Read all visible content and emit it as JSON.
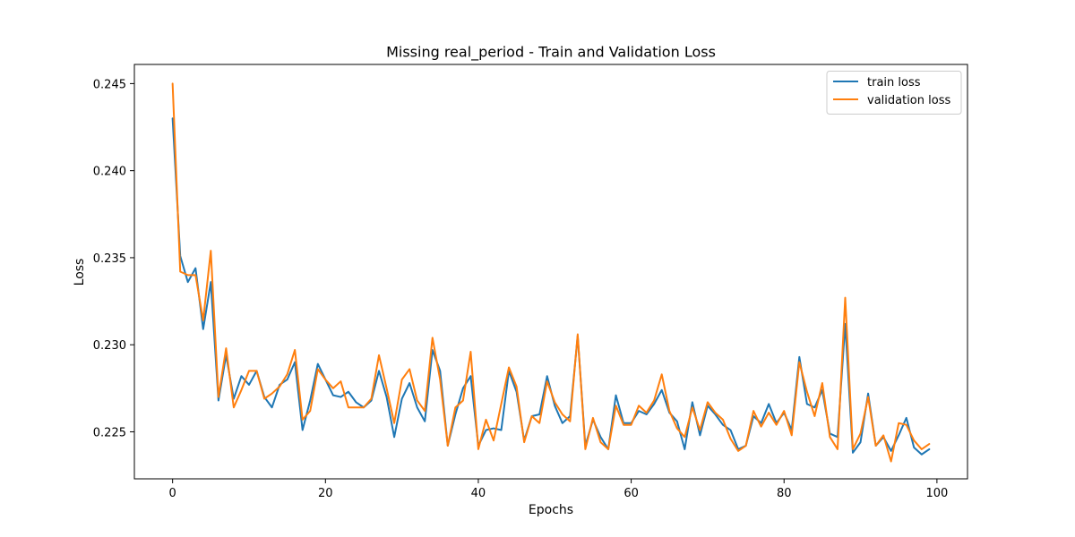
{
  "chart_data": {
    "type": "line",
    "title": "Missing real_period - Train and Validation Loss",
    "xlabel": "Epochs",
    "ylabel": "Loss",
    "xlim": [
      -5,
      104
    ],
    "ylim": [
      0.2223,
      0.2461
    ],
    "xticks": [
      0,
      20,
      40,
      60,
      80,
      100
    ],
    "yticks": [
      0.225,
      0.23,
      0.235,
      0.24,
      0.245
    ],
    "xtick_labels": [
      "0",
      "20",
      "40",
      "60",
      "80",
      "100"
    ],
    "ytick_labels": [
      "0.225",
      "0.230",
      "0.235",
      "0.240",
      "0.245"
    ],
    "legend_position": "top-right",
    "grid": false,
    "series": [
      {
        "name": "train loss",
        "color": "#1f77b4",
        "values": [
          0.243,
          0.2351,
          0.2336,
          0.2344,
          0.2309,
          0.2336,
          0.2268,
          0.2294,
          0.2269,
          0.2282,
          0.2277,
          0.2285,
          0.227,
          0.2264,
          0.2277,
          0.228,
          0.229,
          0.2251,
          0.2268,
          0.2289,
          0.228,
          0.2271,
          0.227,
          0.2273,
          0.2267,
          0.2264,
          0.2268,
          0.2285,
          0.227,
          0.2247,
          0.2269,
          0.2278,
          0.2264,
          0.2256,
          0.2297,
          0.2285,
          0.2242,
          0.226,
          0.2275,
          0.2282,
          0.2242,
          0.2251,
          0.2252,
          0.2251,
          0.2285,
          0.2273,
          0.2245,
          0.2259,
          0.226,
          0.2282,
          0.2265,
          0.2255,
          0.2259,
          0.2305,
          0.2242,
          0.2257,
          0.2247,
          0.224,
          0.2271,
          0.2255,
          0.2255,
          0.2262,
          0.226,
          0.2266,
          0.2274,
          0.2261,
          0.2256,
          0.224,
          0.2267,
          0.2248,
          0.2265,
          0.226,
          0.2254,
          0.2251,
          0.224,
          0.2242,
          0.2259,
          0.2255,
          0.2266,
          0.2255,
          0.2261,
          0.2251,
          0.2293,
          0.2266,
          0.2264,
          0.2274,
          0.2249,
          0.2247,
          0.2312,
          0.2238,
          0.2244,
          0.2272,
          0.2242,
          0.2247,
          0.2239,
          0.2248,
          0.2258,
          0.2241,
          0.2237,
          0.224
        ]
      },
      {
        "name": "validation loss",
        "color": "#ff7f0e",
        "values": [
          0.245,
          0.2342,
          0.234,
          0.234,
          0.2314,
          0.2354,
          0.227,
          0.2298,
          0.2264,
          0.2274,
          0.2285,
          0.2285,
          0.2269,
          0.2272,
          0.2276,
          0.2283,
          0.2297,
          0.2257,
          0.2262,
          0.2286,
          0.228,
          0.2275,
          0.2279,
          0.2264,
          0.2264,
          0.2264,
          0.2269,
          0.2294,
          0.2275,
          0.2255,
          0.228,
          0.2286,
          0.2268,
          0.2262,
          0.2304,
          0.228,
          0.2242,
          0.2264,
          0.2268,
          0.2296,
          0.224,
          0.2257,
          0.2245,
          0.2266,
          0.2287,
          0.2276,
          0.2244,
          0.2259,
          0.2255,
          0.2279,
          0.2267,
          0.226,
          0.2256,
          0.2306,
          0.224,
          0.2258,
          0.2244,
          0.224,
          0.2265,
          0.2254,
          0.2254,
          0.2265,
          0.2261,
          0.2268,
          0.2283,
          0.2262,
          0.2252,
          0.2247,
          0.2264,
          0.2251,
          0.2267,
          0.2261,
          0.2257,
          0.2246,
          0.2239,
          0.2242,
          0.2262,
          0.2253,
          0.2261,
          0.2254,
          0.2262,
          0.2248,
          0.229,
          0.2273,
          0.2259,
          0.2278,
          0.2247,
          0.224,
          0.2327,
          0.224,
          0.2249,
          0.227,
          0.2242,
          0.2248,
          0.2233,
          0.2255,
          0.2254,
          0.2245,
          0.224,
          0.2243
        ]
      }
    ]
  }
}
